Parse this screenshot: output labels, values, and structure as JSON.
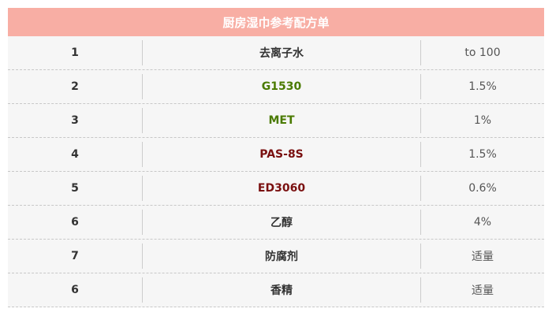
{
  "title": "厨房湿巾参考配方单",
  "colors": {
    "header_bg": "#f8aea4",
    "green": "#4a7a00",
    "dark_red": "#7a1010"
  },
  "rows": [
    {
      "no": "1",
      "name": "去离子水",
      "amount": "to 100",
      "color": "#333333"
    },
    {
      "no": "2",
      "name": "G1530",
      "amount": "1.5%",
      "color": "#4a7a00"
    },
    {
      "no": "3",
      "name": "MET",
      "amount": "1%",
      "color": "#4a7a00"
    },
    {
      "no": "4",
      "name": "PAS-8S",
      "amount": "1.5%",
      "color": "#7a1010"
    },
    {
      "no": "5",
      "name": "ED3060",
      "amount": "0.6%",
      "color": "#7a1010"
    },
    {
      "no": "6",
      "name": "乙醇",
      "amount": "4%",
      "color": "#333333"
    },
    {
      "no": "7",
      "name": "防腐剂",
      "amount": "适量",
      "color": "#333333"
    },
    {
      "no": "6",
      "name": "香精",
      "amount": "适量",
      "color": "#333333"
    }
  ]
}
